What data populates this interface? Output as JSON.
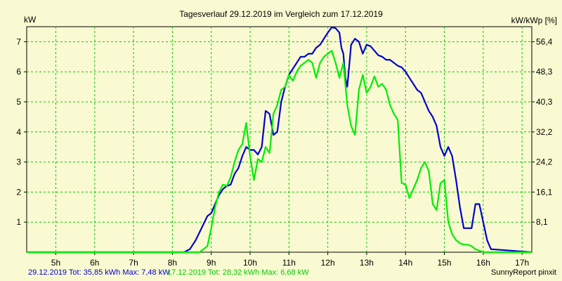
{
  "title": "Tagesverlauf 29.12.2019 im Vergleich zum 17.12.2019",
  "y_left_unit": "kW",
  "y_right_unit": "kW/kWp [%]",
  "footer": {
    "series_1": "29.12.2019 Tot: 35,85 kWh Max: 7,48 kW",
    "series_2": "17.12.2019 Tot: 28,32 kWh Max: 6,68 kW",
    "credit": "SunnyReport pinxit"
  },
  "chart_data": {
    "type": "line",
    "title": "Tagesverlauf 29.12.2019 im Vergleich zum 17.12.2019",
    "xlabel": "",
    "ylabel": "kW",
    "ylabel_right": "kW/kWp [%]",
    "xlim": [
      4.25,
      17.25
    ],
    "ylim": [
      0,
      7.5
    ],
    "x_ticks": [
      5,
      6,
      7,
      8,
      9,
      10,
      11,
      12,
      13,
      14,
      15,
      16,
      17
    ],
    "x_tick_labels": [
      "5h",
      "6h",
      "7h",
      "8h",
      "9h",
      "10h",
      "11h",
      "12h",
      "13h",
      "14h",
      "15h",
      "16h",
      "17h"
    ],
    "y_ticks": [
      1,
      2,
      3,
      4,
      5,
      6,
      7
    ],
    "y_tick_labels": [
      "1",
      "2",
      "3",
      "4",
      "5",
      "6",
      "7"
    ],
    "y_right_tick_labels": [
      "8,1",
      "16,1",
      "24,2",
      "32,2",
      "40,3",
      "48,3",
      "56,4"
    ],
    "grid": true,
    "colors": {
      "series_1": "#0000cc",
      "series_2": "#00ee00",
      "grid": "#00cc00",
      "background": "#fafad2"
    },
    "series": [
      {
        "name": "29.12.2019",
        "x": [
          4.25,
          8.3,
          8.45,
          8.6,
          8.75,
          8.9,
          9.0,
          9.1,
          9.2,
          9.3,
          9.4,
          9.5,
          9.6,
          9.7,
          9.8,
          9.9,
          10.0,
          10.1,
          10.2,
          10.3,
          10.4,
          10.5,
          10.6,
          10.7,
          10.8,
          10.9,
          11.0,
          11.1,
          11.2,
          11.3,
          11.4,
          11.5,
          11.6,
          11.7,
          11.8,
          11.9,
          12.0,
          12.1,
          12.2,
          12.3,
          12.35,
          12.4,
          12.45,
          12.5,
          12.55,
          12.6,
          12.65,
          12.7,
          12.8,
          12.9,
          13.0,
          13.1,
          13.2,
          13.3,
          13.4,
          13.5,
          13.6,
          13.7,
          13.8,
          13.9,
          14.0,
          14.1,
          14.2,
          14.3,
          14.4,
          14.5,
          14.6,
          14.7,
          14.8,
          14.9,
          15.0,
          15.1,
          15.2,
          15.3,
          15.4,
          15.5,
          15.55,
          15.6,
          15.7,
          15.8,
          15.9,
          16.0,
          16.1,
          16.2,
          17.25
        ],
        "values": [
          0,
          0,
          0.1,
          0.4,
          0.8,
          1.2,
          1.3,
          1.6,
          1.9,
          2.1,
          2.2,
          2.25,
          2.6,
          2.8,
          3.2,
          3.5,
          3.4,
          3.4,
          3.25,
          3.5,
          4.7,
          4.6,
          3.9,
          4.0,
          5.0,
          5.5,
          5.9,
          6.1,
          6.3,
          6.5,
          6.5,
          6.6,
          6.6,
          6.8,
          6.9,
          7.1,
          7.3,
          7.48,
          7.45,
          7.3,
          6.8,
          6.6,
          5.8,
          5.5,
          6.2,
          6.9,
          7.0,
          7.1,
          7.0,
          6.6,
          6.9,
          6.85,
          6.7,
          6.55,
          6.5,
          6.4,
          6.4,
          6.3,
          6.2,
          6.15,
          6.0,
          5.8,
          5.6,
          5.4,
          5.3,
          5.0,
          4.7,
          4.5,
          4.2,
          3.5,
          3.2,
          3.5,
          3.2,
          2.4,
          1.5,
          0.8,
          0.8,
          0.8,
          0.8,
          1.6,
          1.6,
          1.0,
          0.4,
          0.1,
          0
        ]
      },
      {
        "name": "17.12.2019",
        "x": [
          4.25,
          8.7,
          8.9,
          9.0,
          9.1,
          9.2,
          9.3,
          9.4,
          9.5,
          9.6,
          9.7,
          9.8,
          9.9,
          10.0,
          10.1,
          10.2,
          10.3,
          10.4,
          10.5,
          10.6,
          10.7,
          10.8,
          10.9,
          11.0,
          11.1,
          11.2,
          11.3,
          11.4,
          11.5,
          11.6,
          11.7,
          11.8,
          11.9,
          12.0,
          12.1,
          12.2,
          12.3,
          12.4,
          12.5,
          12.6,
          12.7,
          12.8,
          12.9,
          13.0,
          13.1,
          13.2,
          13.3,
          13.4,
          13.5,
          13.6,
          13.7,
          13.8,
          13.9,
          14.0,
          14.1,
          14.2,
          14.3,
          14.4,
          14.5,
          14.6,
          14.7,
          14.8,
          14.9,
          15.0,
          15.1,
          15.2,
          15.3,
          15.4,
          15.5,
          15.6,
          15.7,
          15.8,
          15.9,
          16.0,
          16.1,
          16.2,
          16.4,
          17.25
        ],
        "values": [
          0,
          0,
          0.2,
          0.8,
          1.5,
          2.0,
          2.25,
          2.2,
          2.5,
          3.0,
          3.4,
          3.6,
          4.3,
          3.2,
          2.4,
          3.1,
          3.0,
          3.5,
          3.3,
          4.6,
          4.9,
          5.4,
          5.5,
          5.9,
          5.7,
          6.0,
          6.2,
          6.3,
          6.4,
          6.3,
          5.8,
          6.3,
          6.5,
          6.6,
          6.7,
          6.3,
          5.8,
          6.3,
          4.9,
          4.2,
          3.9,
          5.4,
          5.9,
          5.3,
          5.5,
          5.85,
          5.5,
          5.6,
          5.4,
          4.9,
          4.6,
          4.4,
          2.3,
          2.25,
          1.8,
          2.1,
          2.4,
          2.8,
          3.0,
          2.7,
          1.6,
          1.4,
          2.3,
          2.4,
          1.0,
          0.6,
          0.4,
          0.3,
          0.25,
          0.25,
          0.2,
          0.1,
          0.05,
          0,
          0,
          0,
          0,
          0
        ]
      }
    ]
  }
}
